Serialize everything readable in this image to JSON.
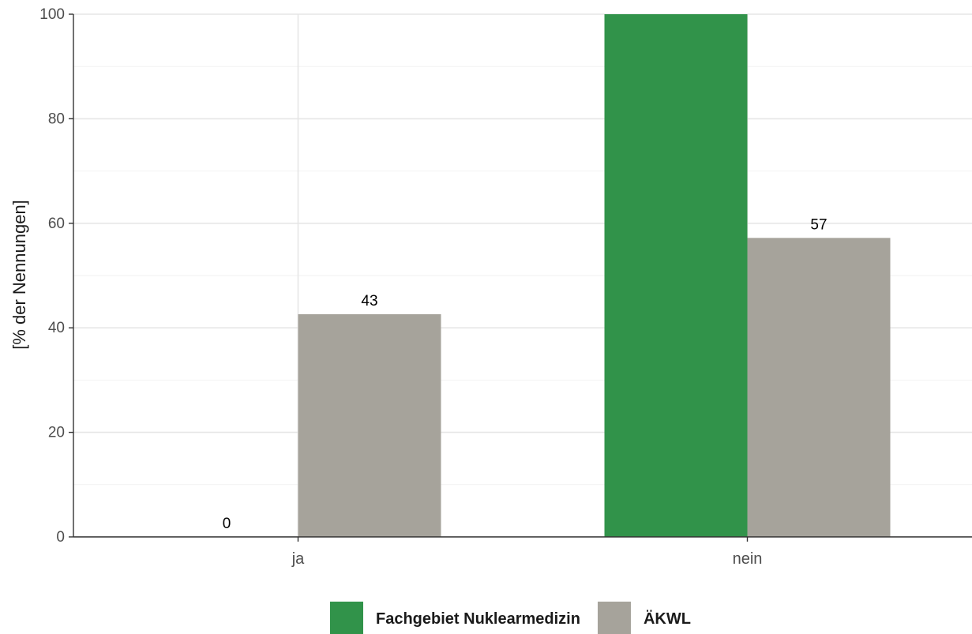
{
  "chart_data": {
    "type": "bar",
    "title": "",
    "xlabel": "",
    "ylabel": "[% der Nennungen]",
    "ylim": [
      0,
      100
    ],
    "yticks": [
      0,
      20,
      40,
      60,
      80,
      100
    ],
    "grid": true,
    "legend_position": "bottom",
    "categories": [
      "ja",
      "nein"
    ],
    "series": [
      {
        "name": "Fachgebiet Nuklearmedizin",
        "color": "#31934a",
        "values": [
          0,
          100
        ],
        "labels": [
          "0",
          ""
        ]
      },
      {
        "name": "ÄKWL",
        "color": "#a6a39b",
        "values": [
          42.6,
          57.2
        ],
        "labels": [
          "43",
          "57"
        ]
      }
    ]
  }
}
